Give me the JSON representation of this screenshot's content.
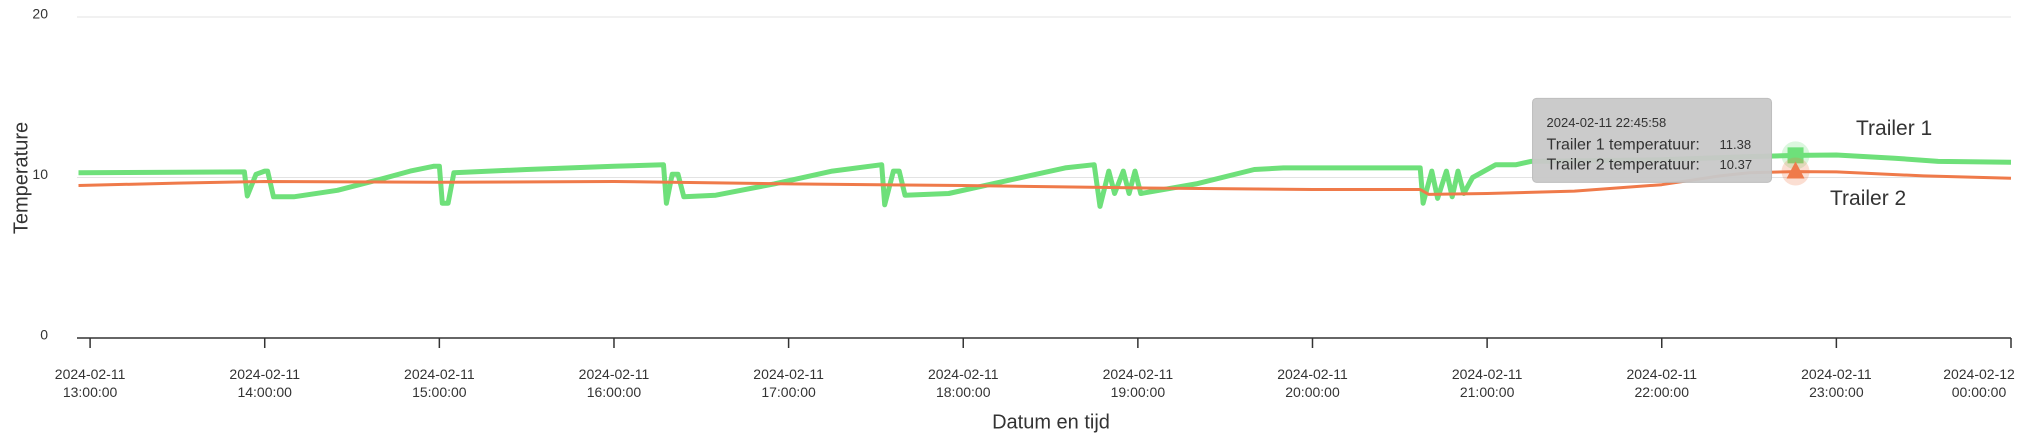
{
  "chart_data": {
    "type": "line",
    "y_axis_label": "Temperature",
    "x_axis_label": "Datum en tijd",
    "xlim": [
      "2024-02-11 12:55:30",
      "2024-02-12 00:00:00"
    ],
    "ylim": [
      0,
      20
    ],
    "yticks": [
      0,
      10,
      20
    ],
    "grid": true,
    "xticks": [
      {
        "value": "2024-02-11 13:00:00",
        "label": "2024-02-11 13:00:00"
      },
      {
        "value": "2024-02-11 14:00:00",
        "label": "2024-02-11 14:00:00"
      },
      {
        "value": "2024-02-11 15:00:00",
        "label": "2024-02-11 15:00:00"
      },
      {
        "value": "2024-02-11 16:00:00",
        "label": "2024-02-11 16:00:00"
      },
      {
        "value": "2024-02-11 17:00:00",
        "label": "2024-02-11 17:00:00"
      },
      {
        "value": "2024-02-11 18:00:00",
        "label": "2024-02-11 18:00:00"
      },
      {
        "value": "2024-02-11 19:00:00",
        "label": "2024-02-11 19:00:00"
      },
      {
        "value": "2024-02-11 20:00:00",
        "label": "2024-02-11 20:00:00"
      },
      {
        "value": "2024-02-11 21:00:00",
        "label": "2024-02-11 21:00:00"
      },
      {
        "value": "2024-02-11 22:00:00",
        "label": "2024-02-11 22:00:00"
      },
      {
        "value": "2024-02-11 23:00:00",
        "label": "2024-02-11 23:00:00"
      },
      {
        "value": "2024-02-12 00:00:00",
        "label": "2024-02-12 00:00:00"
      }
    ],
    "series": [
      {
        "name": "Trailer 1",
        "color": "#6ee07a",
        "width": 5,
        "x": [
          "2024-02-11 12:56:00",
          "2024-02-11 13:30:00",
          "2024-02-11 13:53:00",
          "2024-02-11 13:54:00",
          "2024-02-11 13:57:00",
          "2024-02-11 14:00:00",
          "2024-02-11 14:01:00",
          "2024-02-11 14:03:00",
          "2024-02-11 14:10:00",
          "2024-02-11 14:25:00",
          "2024-02-11 14:40:00",
          "2024-02-11 14:50:00",
          "2024-02-11 14:58:00",
          "2024-02-11 15:00:00",
          "2024-02-11 15:01:00",
          "2024-02-11 15:03:00",
          "2024-02-11 15:05:00",
          "2024-02-11 15:30:00",
          "2024-02-11 16:00:00",
          "2024-02-11 16:17:00",
          "2024-02-11 16:18:00",
          "2024-02-11 16:20:00",
          "2024-02-11 16:22:00",
          "2024-02-11 16:24:00",
          "2024-02-11 16:35:00",
          "2024-02-11 16:55:00",
          "2024-02-11 17:15:00",
          "2024-02-11 17:32:00",
          "2024-02-11 17:33:00",
          "2024-02-11 17:36:00",
          "2024-02-11 17:38:00",
          "2024-02-11 17:40:00",
          "2024-02-11 17:55:00",
          "2024-02-11 18:15:00",
          "2024-02-11 18:35:00",
          "2024-02-11 18:45:00",
          "2024-02-11 18:47:00",
          "2024-02-11 18:50:00",
          "2024-02-11 18:52:00",
          "2024-02-11 18:55:00",
          "2024-02-11 18:57:00",
          "2024-02-11 18:59:00",
          "2024-02-11 19:01:00",
          "2024-02-11 19:20:00",
          "2024-02-11 19:40:00",
          "2024-02-11 19:50:00",
          "2024-02-11 20:37:00",
          "2024-02-11 20:38:00",
          "2024-02-11 20:41:00",
          "2024-02-11 20:43:00",
          "2024-02-11 20:46:00",
          "2024-02-11 20:48:00",
          "2024-02-11 20:50:00",
          "2024-02-11 20:52:00",
          "2024-02-11 20:55:00",
          "2024-02-11 21:03:00",
          "2024-02-11 21:10:00",
          "2024-02-11 21:15:00",
          "2024-02-11 22:00:00",
          "2024-02-11 22:30:00",
          "2024-02-11 22:45:58",
          "2024-02-11 23:00:00",
          "2024-02-11 23:20:00",
          "2024-02-11 23:35:00",
          "2024-02-12 00:00:00"
        ],
        "values": [
          10.3,
          10.33,
          10.35,
          8.85,
          10.2,
          10.4,
          10.4,
          8.8,
          8.8,
          9.2,
          9.9,
          10.4,
          10.7,
          10.7,
          8.4,
          8.4,
          10.3,
          10.5,
          10.7,
          10.8,
          8.4,
          10.2,
          10.2,
          8.8,
          8.9,
          9.6,
          10.4,
          10.8,
          8.3,
          10.4,
          10.4,
          8.9,
          9.0,
          9.8,
          10.6,
          10.8,
          8.2,
          10.4,
          9.0,
          10.4,
          9.0,
          10.4,
          9.0,
          9.6,
          10.5,
          10.6,
          10.6,
          8.4,
          10.4,
          8.7,
          10.4,
          8.8,
          10.4,
          9.0,
          10.0,
          10.8,
          10.8,
          11.0,
          11.1,
          11.3,
          11.38,
          11.4,
          11.2,
          11.0,
          10.95
        ]
      },
      {
        "name": "Trailer 2",
        "color": "#ef7a4a",
        "width": 3,
        "x": [
          "2024-02-11 12:56:00",
          "2024-02-11 13:30:00",
          "2024-02-11 14:00:00",
          "2024-02-11 15:00:00",
          "2024-02-11 16:00:00",
          "2024-02-11 17:00:00",
          "2024-02-11 18:00:00",
          "2024-02-11 19:00:00",
          "2024-02-11 20:00:00",
          "2024-02-11 20:37:00",
          "2024-02-11 20:40:00",
          "2024-02-11 21:00:00",
          "2024-02-11 21:30:00",
          "2024-02-11 22:00:00",
          "2024-02-11 22:20:00",
          "2024-02-11 22:30:00",
          "2024-02-11 22:45:58",
          "2024-02-11 23:00:00",
          "2024-02-11 23:30:00",
          "2024-02-12 00:00:00"
        ],
        "values": [
          9.5,
          9.65,
          9.75,
          9.7,
          9.75,
          9.6,
          9.5,
          9.35,
          9.25,
          9.25,
          8.95,
          9.0,
          9.15,
          9.55,
          10.1,
          10.3,
          10.37,
          10.35,
          10.1,
          9.95
        ]
      }
    ],
    "tooltip": {
      "time": "2024-02-11 22:45:58",
      "rows": [
        {
          "label": "Trailer 1 temperatuur:",
          "value": "11.38"
        },
        {
          "label": "Trailer 2 temperatuur:",
          "value": "10.37"
        }
      ]
    }
  }
}
